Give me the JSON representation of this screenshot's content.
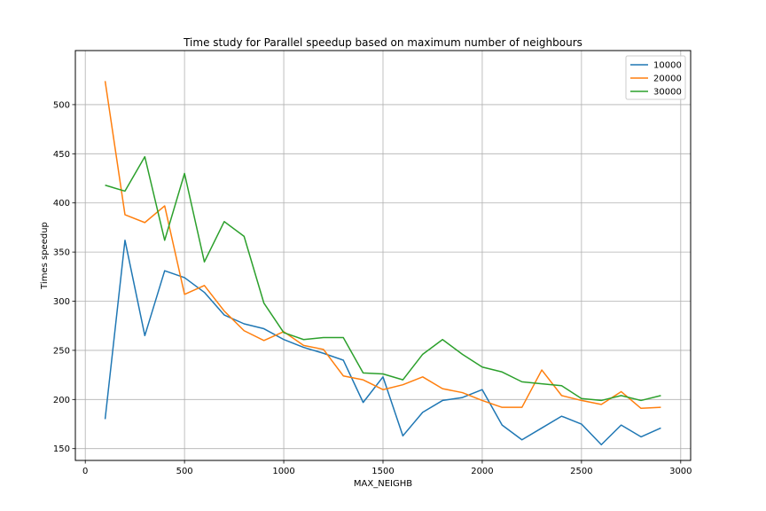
{
  "chart_data": {
    "type": "line",
    "title": "Time study for Parallel speedup based on maximum number of neighbours",
    "xlabel": "MAX_NEIGHB",
    "ylabel": "Times speedup",
    "xlim": [
      -50,
      3050
    ],
    "ylim": [
      138,
      555
    ],
    "xticks": [
      0,
      500,
      1000,
      1500,
      2000,
      2500,
      3000
    ],
    "yticks": [
      150,
      200,
      250,
      300,
      350,
      400,
      450,
      500
    ],
    "grid": true,
    "legend_position": "top-right",
    "x": [
      100,
      200,
      300,
      400,
      500,
      600,
      700,
      800,
      900,
      1000,
      1100,
      1200,
      1300,
      1400,
      1500,
      1600,
      1700,
      1800,
      1900,
      2000,
      2100,
      2200,
      2300,
      2400,
      2500,
      2600,
      2700,
      2800,
      2900
    ],
    "series": [
      {
        "name": "10000",
        "color": "#1f77b4",
        "values": [
          180,
          362,
          265,
          331,
          324,
          309,
          286,
          277,
          272,
          261,
          253,
          247,
          240,
          197,
          223,
          163,
          187,
          199,
          202,
          210,
          174,
          159,
          171,
          183,
          175,
          154,
          174,
          162,
          171
        ]
      },
      {
        "name": "20000",
        "color": "#ff7f0e",
        "values": [
          524,
          388,
          380,
          397,
          307,
          316,
          290,
          270,
          260,
          269,
          255,
          251,
          224,
          220,
          210,
          215,
          223,
          211,
          207,
          199,
          192,
          192,
          230,
          204,
          199,
          195,
          208,
          191,
          192
        ]
      },
      {
        "name": "30000",
        "color": "#2ca02c",
        "values": [
          418,
          412,
          447,
          362,
          430,
          340,
          381,
          366,
          298,
          268,
          261,
          263,
          263,
          227,
          226,
          220,
          246,
          261,
          246,
          233,
          228,
          218,
          216,
          214,
          201,
          199,
          204,
          199,
          204
        ]
      }
    ]
  }
}
